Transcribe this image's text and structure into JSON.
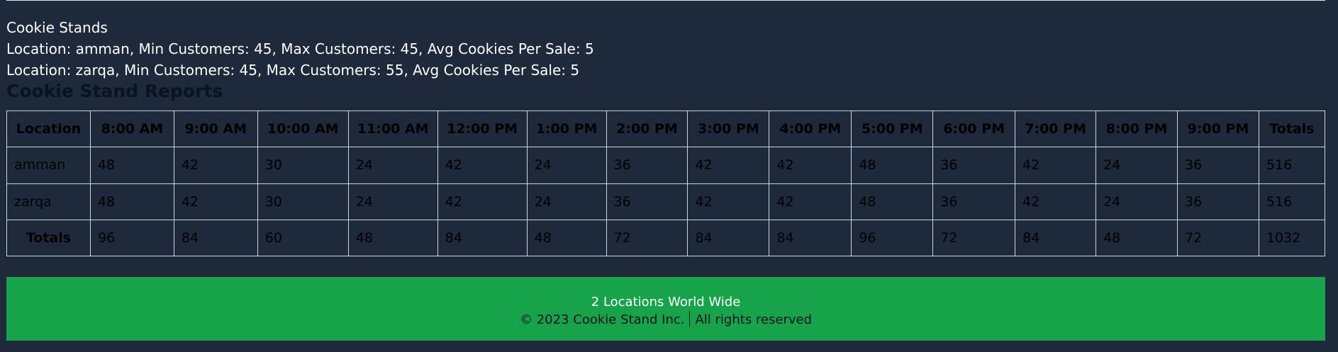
{
  "header": {
    "title": "Cookie Stands"
  },
  "stands": [
    "Location: amman, Min Customers: 45, Max Customers: 45, Avg Cookies Per Sale: 5",
    "Location: zarqa, Min Customers: 45, Max Customers: 55, Avg Cookies Per Sale: 5"
  ],
  "report": {
    "title": "Cookie Stand Reports",
    "headers": [
      "Location",
      "8:00 AM",
      "9:00 AM",
      "10:00 AM",
      "11:00 AM",
      "12:00 PM",
      "1:00 PM",
      "2:00 PM",
      "3:00 PM",
      "4:00 PM",
      "5:00 PM",
      "6:00 PM",
      "7:00 PM",
      "8:00 PM",
      "9:00 PM",
      "Totals"
    ],
    "rows": [
      [
        "amman",
        "48",
        "42",
        "30",
        "24",
        "42",
        "24",
        "36",
        "42",
        "42",
        "48",
        "36",
        "42",
        "24",
        "36",
        "516"
      ],
      [
        "zarqa",
        "48",
        "42",
        "30",
        "24",
        "42",
        "24",
        "36",
        "42",
        "42",
        "48",
        "36",
        "42",
        "24",
        "36",
        "516"
      ]
    ],
    "totals": [
      "Totals",
      "96",
      "84",
      "60",
      "48",
      "84",
      "48",
      "72",
      "84",
      "84",
      "96",
      "72",
      "84",
      "48",
      "72",
      "1032"
    ]
  },
  "footer": {
    "locations": "2 Locations World Wide",
    "copyright": "© 2023 Cookie Stand Inc.",
    "rights": "All rights reserved"
  },
  "colors": {
    "background": "#1e293b",
    "footer": "#16a34a",
    "border": "#d1d5db"
  }
}
